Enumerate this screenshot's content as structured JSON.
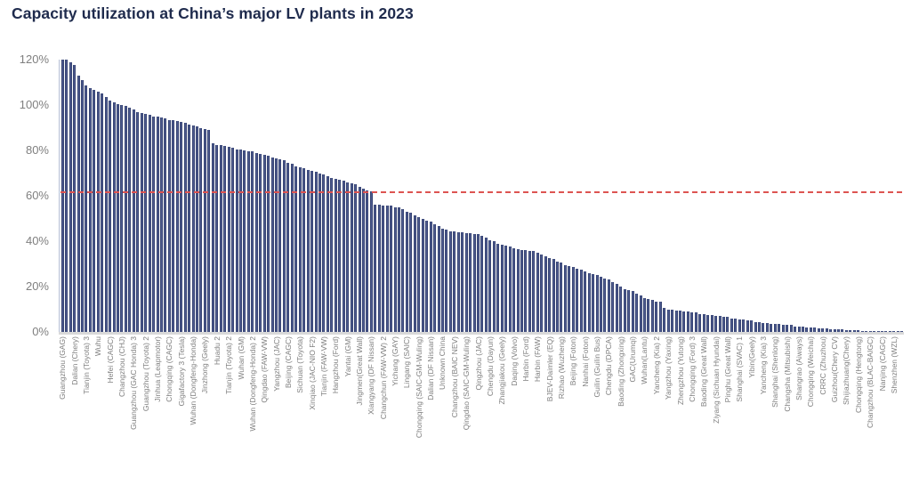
{
  "title": "Capacity utilization at China’s major LV plants in 2023",
  "colors": {
    "bar": "#2e3c6e",
    "title_text": "#1f2b4d",
    "axis_text": "#7f7f7f",
    "reference_line": "#dd5451",
    "baseline": "#d9d9d9",
    "y_axis_line": "#b7c0d6"
  },
  "chart_data": {
    "type": "bar",
    "title": "Capacity utilization at China’s major LV plants in 2023",
    "xlabel": "",
    "ylabel": "",
    "ylim": [
      0,
      120
    ],
    "y_tick_labels": [
      "120%",
      "100%",
      "80%",
      "60%",
      "40%",
      "20%",
      "0%"
    ],
    "y_tick_values": [
      120,
      100,
      80,
      60,
      40,
      20,
      0
    ],
    "grid": false,
    "legend": false,
    "reference_line": {
      "value": 62,
      "style": "dashed",
      "color": "#dd5451"
    },
    "bar_count": 213,
    "label_every_n_bars": 3,
    "categories": [
      "Guangzhou (GAG)",
      "Dalian (Chery)",
      "Tianjin (Toyota) 3",
      "Wuhu",
      "Hefei (CAGC)",
      "Changzhou (CHJ)",
      "Guangzhou (GAC Honda) 3",
      "Guangzhou (Toyota) 2",
      "Jinhua (Leapmotor)",
      "Chongqing (CAGC)",
      "Gigafactory 3 (Tesla)",
      "Wuhan (Dongfeng-Honda)",
      "Jinzhong (Geely)",
      "Huadu 2",
      "Tianjin (Toyota) 2",
      "Wuhan (GM)",
      "Wuhan (Dongfeng-Honda) 2",
      "Qingdao (FAW-VW)",
      "Yangzhou (JAC)",
      "Beijing (CAGC)",
      "Sichuan (Toyota)",
      "Xinqiao (JAC-NIO F2)",
      "Tianjin (FAW-VW)",
      "Hangzhou (Ford)",
      "Yantai (GM)",
      "Jingmen(Great Wall)",
      "Xiangyang (DF Nissan)",
      "Changchun (FAW-VW) 2",
      "Yichang (GAY)",
      "Lingang (SAIC)",
      "Chongqing (SAIC-GM-Wuling)",
      "Dalian (DF Nissan)",
      "Unknown China",
      "Changzhou (BAIC NEV)",
      "Qingdao (SAIC-GM-Wuling)",
      "Qingzhou (JAC)",
      "Chengdu (Dayun)",
      "Zhangjiakou (Geely)",
      "Daqing (Volvo)",
      "Harbin (Ford)",
      "Harbin (FAW)",
      "BJEV-Daimler (EQ)",
      "Rizhao (Wuzheng)",
      "Beijing (Foton)",
      "Nanhai (Foton)",
      "Guilin (Guilin Bus)",
      "Chengdu (DPCA)",
      "Baoding (Zhongxing)",
      "GAC(Urumqi)",
      "Wuhan(Lantu)",
      "Yancheng (Kia) 2",
      "Yangzhou (Yaxing)",
      "Zhengzhou (Yutong)",
      "Chongqing (Ford) 3",
      "Baoding (Great Wall)",
      "Ziyang (Sichuan Hyundai)",
      "Pinghu (Great Wall)",
      "Shanghai (SVAC) 1",
      "Yibin(Geely)",
      "Yancheng (Kia) 3",
      "Shanghai (Shenlong)",
      "Changsha (Mitsubishi)",
      "Shangrao (Aiways)",
      "Chongqing (Weichai)",
      "CRRC (Zhuzhou)",
      "Guizhou(Chery CV)",
      "Shijiazhuang(Chery)",
      "Chongqing (Hengtong)",
      "Changzhou (BLAC-BAIGC)",
      "Nanjing (CAGC)",
      "Shenzhen (WZL)"
    ],
    "values": [
      120,
      120,
      119,
      117.5,
      113,
      111,
      108.5,
      107.5,
      106.5,
      106,
      105,
      103.5,
      102,
      101,
      100.5,
      100,
      99.5,
      99,
      98,
      97,
      96.5,
      96,
      95.5,
      95,
      95,
      94.5,
      94,
      93.5,
      93.5,
      93,
      92.5,
      92,
      91.5,
      91,
      90.5,
      90,
      89.5,
      89,
      83,
      82.5,
      82.5,
      82,
      81.5,
      81,
      80.5,
      80.5,
      80,
      79.5,
      79.5,
      79,
      78.5,
      78,
      77.5,
      77,
      76.5,
      76,
      75.5,
      74.5,
      74,
      73,
      72.5,
      72,
      71.5,
      71,
      70.5,
      70,
      69.5,
      68.5,
      68,
      67.5,
      67,
      66.5,
      66,
      65.5,
      65,
      64,
      63,
      62.5,
      62,
      56,
      56,
      55.5,
      55.5,
      55.5,
      55,
      55,
      54,
      53,
      52.5,
      51.5,
      50.5,
      50,
      49,
      48.5,
      47.5,
      46.5,
      45.5,
      45,
      44.5,
      44.5,
      44,
      44,
      43.5,
      43.5,
      43,
      43,
      42.5,
      41.5,
      40.5,
      40,
      39,
      38.5,
      38,
      37.5,
      37,
      36.5,
      36,
      36,
      35.5,
      35.5,
      35,
      34,
      33.5,
      32.5,
      32,
      31,
      30.5,
      29.5,
      29,
      28.5,
      28,
      27.5,
      26.5,
      26,
      25.5,
      25,
      24.5,
      23.5,
      23,
      22,
      21,
      20,
      19,
      18.5,
      18,
      17,
      16,
      15,
      14.5,
      14,
      13.5,
      13.5,
      10.5,
      10,
      10,
      9.5,
      9.5,
      9,
      9,
      8.5,
      8.5,
      8,
      8,
      7.5,
      7.5,
      7,
      7,
      6.5,
      6.5,
      6,
      6,
      5.5,
      5.5,
      5,
      5,
      4.5,
      4.5,
      4,
      4,
      3.5,
      3.5,
      3.5,
      3,
      3,
      3,
      2.5,
      2.5,
      2.5,
      2,
      2,
      2,
      1.5,
      1.5,
      1.5,
      1,
      1,
      1,
      1,
      0.8,
      0.8,
      0.7,
      0.6,
      0.5,
      0.5,
      0.4,
      0.4,
      0.3,
      0.3,
      0.2,
      0.2,
      0.1,
      0.1,
      0.1
    ]
  }
}
